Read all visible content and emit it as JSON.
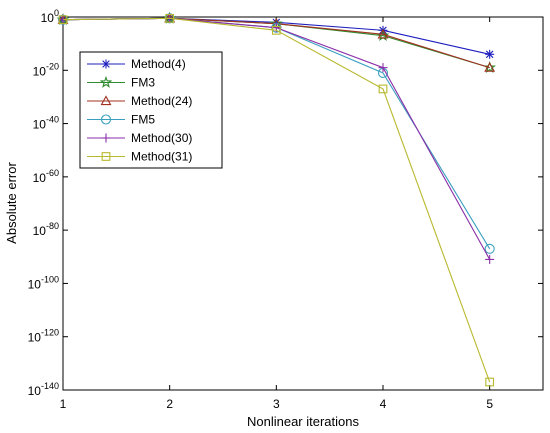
{
  "chart_data": {
    "type": "line",
    "title": "",
    "xlabel": "Nonlinear iterations",
    "ylabel": "Absolute error",
    "x": [
      1,
      2,
      3,
      4,
      5
    ],
    "xlim": [
      1,
      5.5
    ],
    "ylim": [
      -140,
      0
    ],
    "y_scale": "log10",
    "grid": false,
    "legend_position": "top-left",
    "x_ticks": [
      "1",
      "2",
      "3",
      "4",
      "5"
    ],
    "y_ticks": [
      {
        "base": "10",
        "exp": "0",
        "value": 0
      },
      {
        "base": "10",
        "exp": "-20",
        "value": -20
      },
      {
        "base": "10",
        "exp": "-40",
        "value": -40
      },
      {
        "base": "10",
        "exp": "-60",
        "value": -60
      },
      {
        "base": "10",
        "exp": "-80",
        "value": -80
      },
      {
        "base": "10",
        "exp": "-100",
        "value": -100
      },
      {
        "base": "10",
        "exp": "-120",
        "value": -120
      },
      {
        "base": "10",
        "exp": "-140",
        "value": -140
      }
    ],
    "series": [
      {
        "name": "Method(4)",
        "marker": "asterisk",
        "color": "#1f1fbf",
        "log10_values": [
          -1,
          -0.5,
          -2,
          -5,
          -14
        ]
      },
      {
        "name": "FM3",
        "marker": "star",
        "color": "#2e8b2e",
        "log10_values": [
          -1,
          -0.5,
          -2.5,
          -7,
          -19
        ]
      },
      {
        "name": "Method(24)",
        "marker": "triangle",
        "color": "#a0301f",
        "log10_values": [
          -1,
          -0.5,
          -2.5,
          -6.5,
          -19
        ]
      },
      {
        "name": "FM5",
        "marker": "circle",
        "color": "#3a9fbf",
        "log10_values": [
          -1,
          -0.5,
          -4,
          -21,
          -87
        ]
      },
      {
        "name": "Method(30)",
        "marker": "plus",
        "color": "#8b2fa8",
        "log10_values": [
          -1,
          -0.5,
          -4,
          -19,
          -91
        ]
      },
      {
        "name": "Method(31)",
        "marker": "square",
        "color": "#b8b82e",
        "log10_values": [
          -1,
          -0.5,
          -5,
          -27,
          -137
        ]
      }
    ]
  }
}
